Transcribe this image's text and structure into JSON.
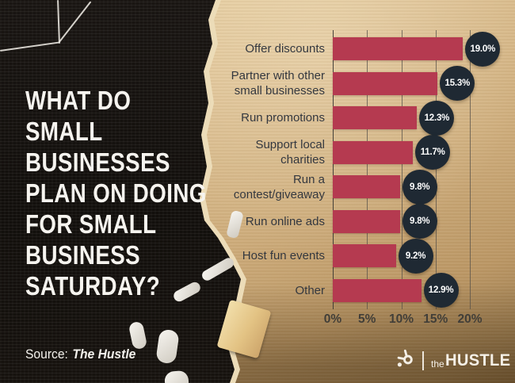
{
  "header": {
    "title": "WHAT DO SMALL\nBUSINESSES\nPLAN ON DOING\nFOR SMALL\nBUSINESS\nSATURDAY?"
  },
  "source": {
    "label": "Source:",
    "value": "The Hustle"
  },
  "brand": {
    "the": "the",
    "name": "HUSTLE",
    "icon": "hubspot-sprocket-icon"
  },
  "chart_data": {
    "type": "bar",
    "orientation": "horizontal",
    "title": "What do small businesses plan on doing for Small Business Saturday?",
    "categories": [
      "Offer discounts",
      "Partner with other small businesses",
      "Run promotions",
      "Support local charities",
      "Run a contest/giveaway",
      "Run online ads",
      "Host fun events",
      "Other"
    ],
    "values": [
      19.0,
      15.3,
      12.3,
      11.7,
      9.8,
      9.8,
      9.2,
      12.9
    ],
    "value_labels": [
      "19.0%",
      "15.3%",
      "12.3%",
      "11.7%",
      "9.8%",
      "9.8%",
      "9.2%",
      "12.9%"
    ],
    "x_tick_labels": [
      "0%",
      "5%",
      "10%",
      "15%",
      "20%"
    ],
    "x_tick_values": [
      0,
      5,
      10,
      15,
      20
    ],
    "xlim": [
      0,
      20
    ],
    "grid": true,
    "legend": false,
    "colors": {
      "bar": "#b53a50",
      "badge": "#1f2933",
      "category_label": "#34383f",
      "tick_label": "#413e38",
      "gridline": "#56504a",
      "axis_line": "#3d3a35"
    }
  }
}
